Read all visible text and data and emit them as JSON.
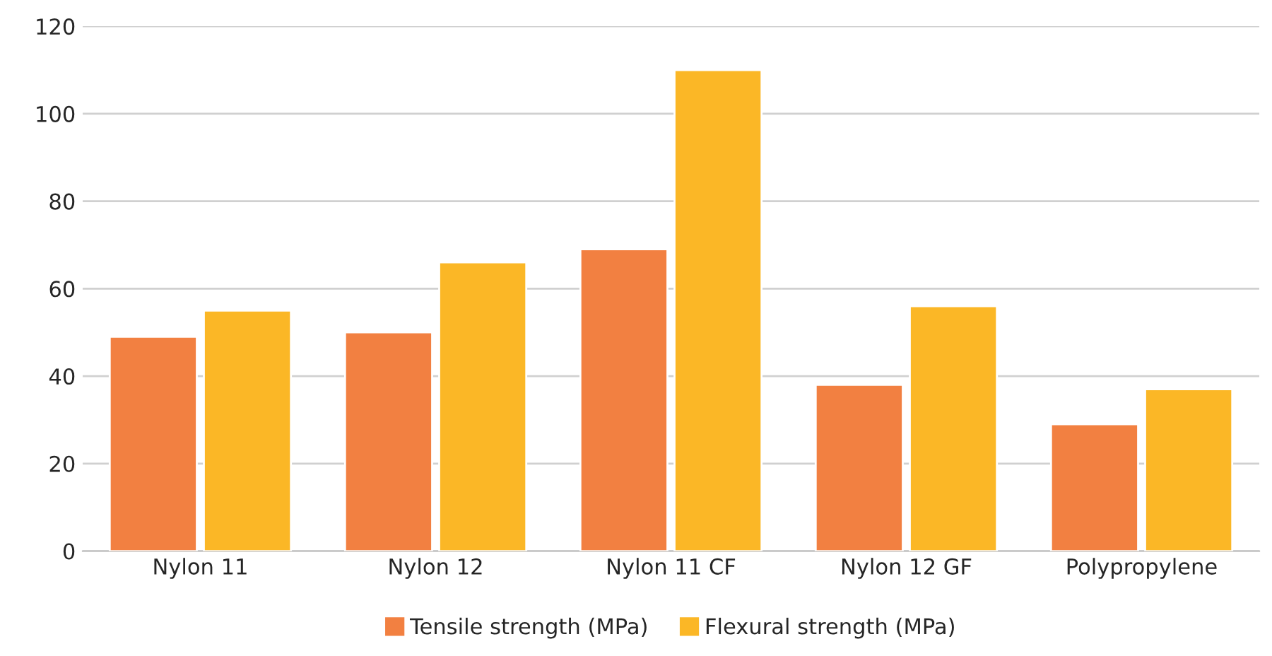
{
  "chart_data": {
    "type": "bar",
    "categories": [
      "Nylon 11",
      "Nylon 12",
      "Nylon 11 CF",
      "Nylon 12 GF",
      "Polypropylene"
    ],
    "series": [
      {
        "name": "Tensile strength (MPa)",
        "color": "#f28041",
        "values": [
          49,
          50,
          69,
          38,
          29
        ]
      },
      {
        "name": "Flexural strength (MPa)",
        "color": "#fbb726",
        "values": [
          55,
          66,
          110,
          56,
          37
        ]
      }
    ],
    "ylim": [
      0,
      120
    ],
    "yticks": [
      0,
      20,
      40,
      60,
      80,
      100,
      120
    ],
    "grid": "y",
    "legend": "bottom"
  }
}
